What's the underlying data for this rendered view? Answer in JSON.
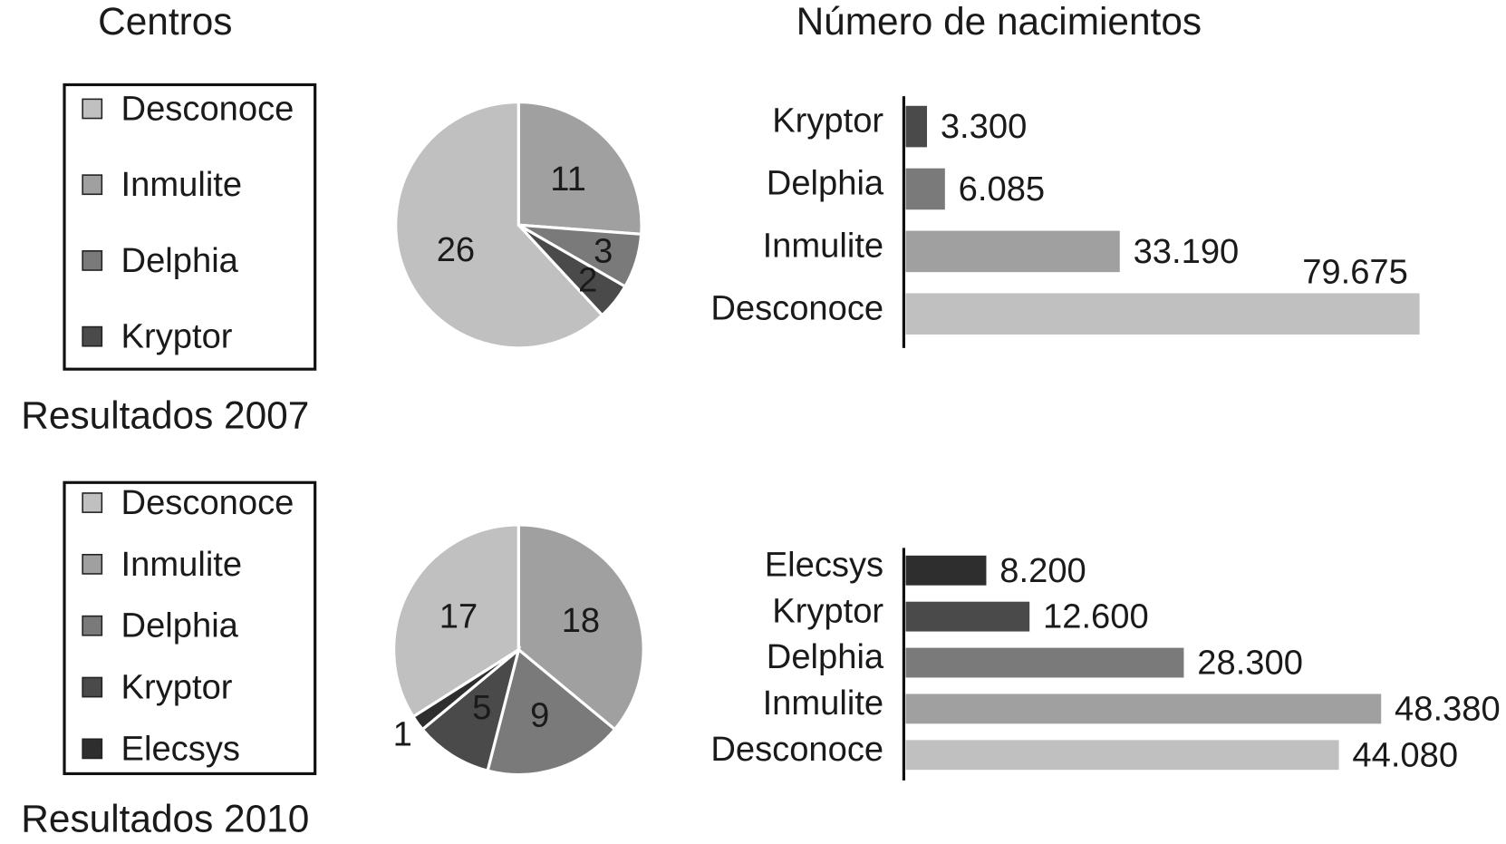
{
  "column_titles": [
    "Centros",
    "Número de nacimientos"
  ],
  "chart_data": [
    {
      "type": "pie",
      "title": "Resultados 2007",
      "categories": [
        "Desconoce",
        "Inmulite",
        "Delphia",
        "Kryptor"
      ],
      "values": [
        26,
        11,
        3,
        2
      ],
      "colors": [
        "#c0c0c0",
        "#a0a0a0",
        "#7a7a7a",
        "#4a4a4a"
      ]
    },
    {
      "type": "bar",
      "orientation": "horizontal",
      "categories": [
        "Kryptor",
        "Delphia",
        "Inmulite",
        "Desconoce"
      ],
      "values": [
        3300,
        6085,
        33190,
        79675
      ],
      "value_labels": [
        "3.300",
        "6.085",
        "33.190",
        "79.675"
      ],
      "colors": [
        "#4a4a4a",
        "#7a7a7a",
        "#a0a0a0",
        "#c0c0c0"
      ]
    },
    {
      "type": "pie",
      "title": "Resultados 2010",
      "categories": [
        "Desconoce",
        "Inmulite",
        "Delphia",
        "Kryptor",
        "Elecsys"
      ],
      "values": [
        17,
        18,
        9,
        5,
        1
      ],
      "colors": [
        "#c0c0c0",
        "#a0a0a0",
        "#7a7a7a",
        "#4a4a4a",
        "#2e2e2e"
      ]
    },
    {
      "type": "bar",
      "orientation": "horizontal",
      "categories": [
        "Elecsys",
        "Kryptor",
        "Delphia",
        "Inmulite",
        "Desconoce"
      ],
      "values": [
        8200,
        12600,
        28300,
        48380,
        44080
      ],
      "value_labels": [
        "8.200",
        "12.600",
        "28.300",
        "48.380",
        "44.080"
      ],
      "colors": [
        "#2e2e2e",
        "#4a4a4a",
        "#7a7a7a",
        "#a0a0a0",
        "#c0c0c0"
      ]
    }
  ]
}
